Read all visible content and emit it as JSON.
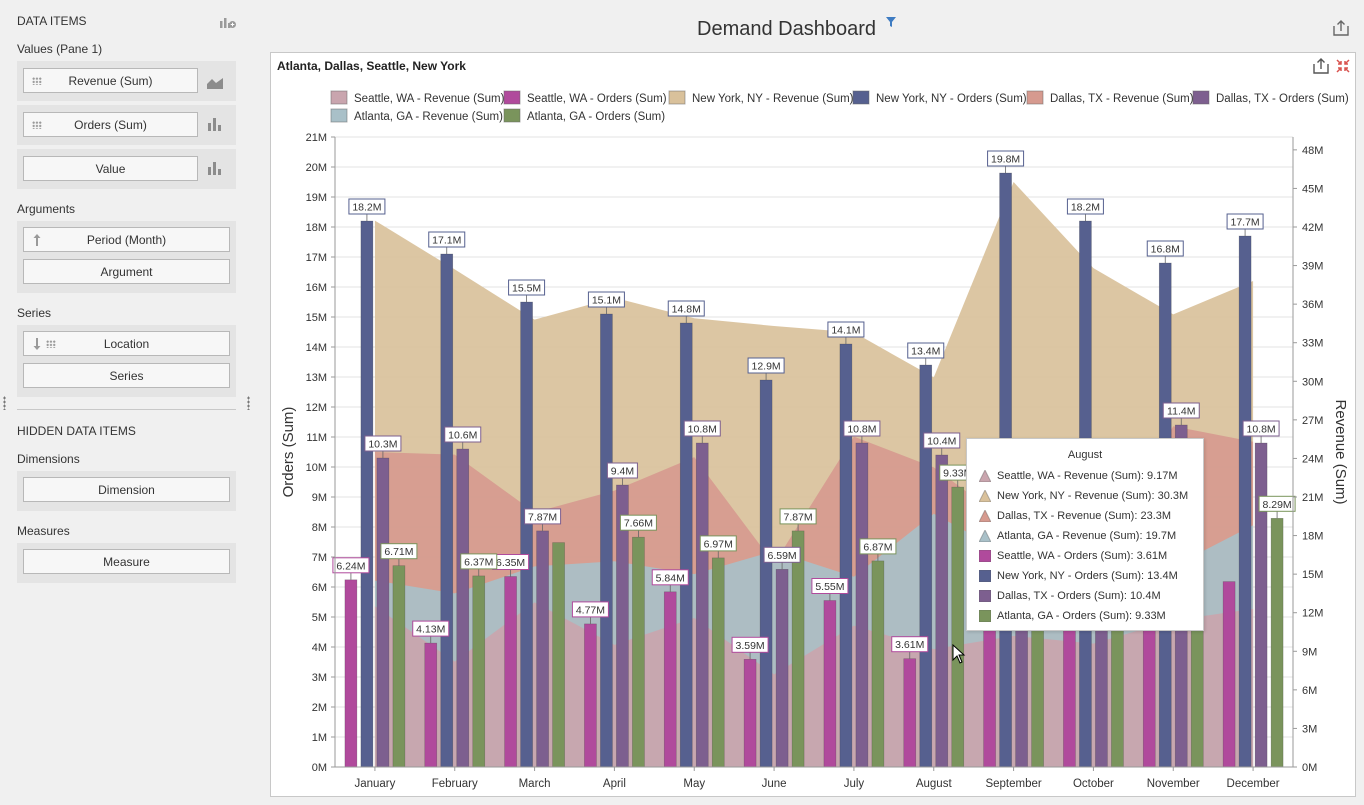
{
  "left_panel": {
    "data_items_title": "DATA ITEMS",
    "values_title": "Values (Pane 1)",
    "values": [
      {
        "label": "Revenue (Sum)",
        "type_icon": "area-chart-icon"
      },
      {
        "label": "Orders (Sum)",
        "type_icon": "bar-chart-icon"
      },
      {
        "label": "Value",
        "type_icon": "bar-chart-icon"
      }
    ],
    "arguments_title": "Arguments",
    "arguments": [
      "Period (Month)",
      "Argument"
    ],
    "series_title": "Series",
    "series": [
      "Location",
      "Series"
    ],
    "hidden_title": "HIDDEN DATA ITEMS",
    "dimensions_title": "Dimensions",
    "dimension": "Dimension",
    "measures_title": "Measures",
    "measure": "Measure"
  },
  "header": {
    "title": "Demand Dashboard"
  },
  "card": {
    "title": "Atlanta, Dallas, Seattle, New York"
  },
  "colors": {
    "seattle_rev": "#c9a5ae",
    "seattle_ord": "#b04a9c",
    "ny_rev": "#d9c19b",
    "ny_ord": "#56608f",
    "dallas_rev": "#d69a8f",
    "dallas_ord": "#7d5f8f",
    "atlanta_rev": "#a9c0c8",
    "atlanta_ord": "#7a945c"
  },
  "chart_data": {
    "type": "bar",
    "categories": [
      "January",
      "February",
      "March",
      "April",
      "May",
      "June",
      "July",
      "August",
      "September",
      "October",
      "November",
      "December"
    ],
    "legend": [
      "Seattle, WA - Revenue (Sum)",
      "Seattle, WA - Orders (Sum)",
      "New York, NY - Revenue (Sum)",
      "New York, NY - Orders (Sum)",
      "Dallas, TX - Revenue (Sum)",
      "Dallas, TX - Orders (Sum)",
      "Atlanta, GA - Revenue (Sum)",
      "Atlanta, GA - Orders (Sum)"
    ],
    "ylabel": "Orders (Sum)",
    "y2label": "Revenue (Sum)",
    "ylim": [
      0,
      21000000
    ],
    "y2lim": [
      0,
      49000000
    ],
    "y_ticks": [
      "0M",
      "1M",
      "2M",
      "3M",
      "4M",
      "5M",
      "6M",
      "7M",
      "8M",
      "9M",
      "10M",
      "11M",
      "12M",
      "13M",
      "14M",
      "15M",
      "16M",
      "17M",
      "18M",
      "19M",
      "20M",
      "21M"
    ],
    "y2_ticks": [
      "0M",
      "3M",
      "6M",
      "9M",
      "12M",
      "15M",
      "18M",
      "21M",
      "24M",
      "27M",
      "30M",
      "33M",
      "36M",
      "39M",
      "42M",
      "45M",
      "48M"
    ],
    "order_series": [
      {
        "key": "seattle_ord",
        "values": [
          6240000,
          4130000,
          6350000,
          4770000,
          5840000,
          3590000,
          5550000,
          3610000,
          4750000,
          4580000,
          5150000,
          6180000
        ],
        "labels": [
          "6.24M",
          "4.13M",
          "6.35M",
          "4.77M",
          "5.84M",
          "3.59M",
          "5.55M",
          "3.61M",
          "",
          "",
          "",
          ""
        ]
      },
      {
        "key": "ny_ord",
        "values": [
          18200000,
          17100000,
          15500000,
          15100000,
          14800000,
          12900000,
          14100000,
          13400000,
          19800000,
          18200000,
          16800000,
          17700000
        ],
        "labels": [
          "18.2M",
          "17.1M",
          "15.5M",
          "15.1M",
          "14.8M",
          "12.9M",
          "14.1M",
          "13.4M",
          "19.8M",
          "18.2M",
          "16.8M",
          "17.7M"
        ]
      },
      {
        "key": "dallas_ord",
        "values": [
          10300000,
          10600000,
          7870000,
          9400000,
          10800000,
          6590000,
          10800000,
          10400000,
          7000000,
          6300000,
          11400000,
          10800000
        ],
        "labels": [
          "10.3M",
          "10.6M",
          "7.87M",
          "9.4M",
          "10.8M",
          "6.59M",
          "10.8M",
          "10.4M",
          "",
          "",
          "11.4M",
          "10.8M"
        ]
      },
      {
        "key": "atlanta_ord",
        "values": [
          6710000,
          6370000,
          7480000,
          7660000,
          6970000,
          7870000,
          6870000,
          9330000,
          7300000,
          6800000,
          6900000,
          8290000
        ],
        "labels": [
          "6.71M",
          "6.37M",
          "",
          "7.66M",
          "6.97M",
          "7.87M",
          "6.87M",
          "9.33M",
          "",
          "",
          "",
          "8.29M"
        ]
      }
    ],
    "revenue_series": [
      {
        "key": "ny_rev",
        "values": [
          42500000,
          38700000,
          34800000,
          36500000,
          34900000,
          34300000,
          33800000,
          30300000,
          45500000,
          38800000,
          35200000,
          37800000
        ]
      },
      {
        "key": "dallas_rev",
        "values": [
          24500000,
          24300000,
          19800000,
          21500000,
          24100000,
          15800000,
          25700000,
          23300000,
          18700000,
          16400000,
          26500000,
          25300000
        ]
      },
      {
        "key": "atlanta_rev",
        "values": [
          14500000,
          13500000,
          15600000,
          16000000,
          15000000,
          16800000,
          14800000,
          19700000,
          16300000,
          15300000,
          15600000,
          18800000
        ]
      },
      {
        "key": "seattle_rev",
        "values": [
          12500000,
          8200000,
          12800000,
          9500000,
          11600000,
          7200000,
          11000000,
          9170000,
          10200000,
          9600000,
          11400000,
          12300000
        ]
      }
    ]
  },
  "tooltip": {
    "title": "August",
    "rows": [
      {
        "text": "Seattle, WA - Revenue (Sum): 9.17M",
        "key": "seattle_rev",
        "shape": "triangle"
      },
      {
        "text": "New York, NY - Revenue (Sum): 30.3M",
        "key": "ny_rev",
        "shape": "triangle"
      },
      {
        "text": "Dallas, TX - Revenue (Sum): 23.3M",
        "key": "dallas_rev",
        "shape": "triangle"
      },
      {
        "text": "Atlanta, GA - Revenue (Sum): 19.7M",
        "key": "atlanta_rev",
        "shape": "triangle"
      },
      {
        "text": "Seattle, WA - Orders (Sum): 3.61M",
        "key": "seattle_ord",
        "shape": "square"
      },
      {
        "text": "New York, NY - Orders (Sum): 13.4M",
        "key": "ny_ord",
        "shape": "square"
      },
      {
        "text": "Dallas, TX - Orders (Sum): 10.4M",
        "key": "dallas_ord",
        "shape": "square"
      },
      {
        "text": "Atlanta, GA - Orders (Sum): 9.33M",
        "key": "atlanta_ord",
        "shape": "square"
      }
    ]
  }
}
